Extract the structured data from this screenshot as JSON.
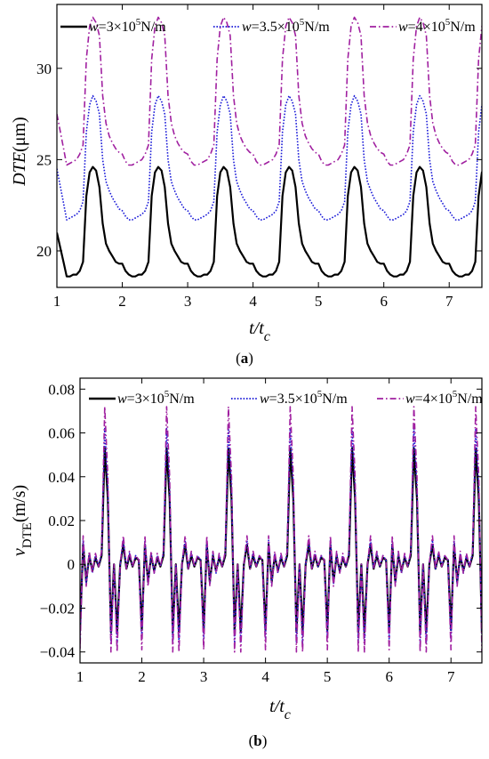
{
  "chart_data": [
    {
      "type": "line",
      "panel_label": "(a)",
      "xlabel": {
        "main": "t/t",
        "sub": "c"
      },
      "ylabel": {
        "main": "DTE",
        "unit": "(μm)"
      },
      "xlim": [
        1,
        7.5
      ],
      "ylim": [
        18,
        33.5
      ],
      "xticks": [
        1,
        2,
        3,
        4,
        5,
        6,
        7
      ],
      "yticks": [
        20,
        25,
        30
      ],
      "grid": false,
      "legend_position": "top",
      "period": 1,
      "series": [
        {
          "name": "w=3×10⁵N/m",
          "legend": {
            "pre": "w",
            "mid": "=3×10",
            "sup": "5",
            "post": "N/m"
          },
          "color": "#000000",
          "style": "solid",
          "values_one_period": [
            19.3,
            18.9,
            18.7,
            18.6,
            18.6,
            18.7,
            18.7,
            18.9,
            19.4,
            23.0,
            24.3,
            24.6,
            24.4,
            23.5,
            21.5,
            20.4,
            20.0,
            19.7,
            19.4,
            19.3
          ],
          "start_value": 21.0
        },
        {
          "name": "w=3.5×10⁵N/m",
          "legend": {
            "pre": "w",
            "mid": "=3.5×10",
            "sup": "5",
            "post": "N/m"
          },
          "color": "#1a1ad8",
          "style": "dotted",
          "values_one_period": [
            22.2,
            21.9,
            21.7,
            21.7,
            21.8,
            21.9,
            22.0,
            22.2,
            22.7,
            26.5,
            28.0,
            28.5,
            28.2,
            27.5,
            25.0,
            23.8,
            23.3,
            22.9,
            22.6,
            22.3
          ],
          "start_value": 24.5
        },
        {
          "name": "w=4×10⁵N/m",
          "legend": {
            "pre": "w",
            "mid": "=4×10",
            "sup": "5",
            "post": "N/m"
          },
          "color": "#a020a0",
          "style": "dashdot",
          "values_one_period": [
            25.3,
            24.9,
            24.7,
            24.7,
            24.8,
            24.9,
            25.0,
            25.3,
            25.8,
            30.5,
            32.3,
            32.8,
            32.5,
            31.8,
            28.5,
            27.0,
            26.3,
            25.9,
            25.6,
            25.4
          ],
          "start_value": 27.5
        }
      ]
    },
    {
      "type": "line",
      "panel_label": "(b)",
      "xlabel": {
        "main": "t/t",
        "sub": "c"
      },
      "ylabel": {
        "main": "v",
        "sub": "DTE",
        "unit": "(m/s)"
      },
      "xlim": [
        1,
        7.5
      ],
      "ylim": [
        -0.045,
        0.085
      ],
      "xticks": [
        1,
        2,
        3,
        4,
        5,
        6,
        7
      ],
      "yticks": [
        -0.04,
        -0.02,
        0,
        0.02,
        0.04,
        0.06,
        0.08
      ],
      "ytick_labels": [
        "−0.04",
        "−0.02",
        "0",
        "0.02",
        "0.04",
        "0.06",
        "0.08"
      ],
      "grid": false,
      "legend_position": "top",
      "period": 1,
      "series": [
        {
          "name": "w=3×10⁵N/m",
          "legend": {
            "pre": "w",
            "mid": "=3×10",
            "sup": "5",
            "post": "N/m"
          },
          "color": "#000000",
          "style": "solid",
          "amplitude_scale": 0.75,
          "values_one_period": [
            -0.03,
            0.009,
            -0.008,
            0.004,
            -0.003,
            0.003,
            -0.001,
            0.004,
            0.053,
            0.03,
            -0.031,
            0.0,
            -0.031,
            0.0,
            0.009,
            -0.002,
            0.004,
            -0.001,
            0.003,
            0.002,
            -0.03
          ]
        },
        {
          "name": "w=3.5×10⁵N/m",
          "legend": {
            "pre": "w",
            "mid": "=3.5×10",
            "sup": "5",
            "post": "N/m"
          },
          "color": "#1a1ad8",
          "style": "dotted",
          "amplitude_scale": 0.87,
          "values_one_period": [
            -0.034,
            0.011,
            -0.009,
            0.005,
            -0.004,
            0.004,
            -0.001,
            0.005,
            0.062,
            0.035,
            -0.036,
            0.0,
            -0.036,
            0.0,
            0.011,
            -0.002,
            0.005,
            -0.001,
            0.004,
            0.002,
            -0.034
          ]
        },
        {
          "name": "w=4×10⁵N/m",
          "legend": {
            "pre": "w",
            "mid": "=4×10",
            "sup": "5",
            "post": "N/m"
          },
          "color": "#a020a0",
          "style": "dashdot",
          "amplitude_scale": 1.0,
          "values_one_period": [
            -0.039,
            0.013,
            -0.01,
            0.006,
            -0.004,
            0.005,
            -0.001,
            0.006,
            0.072,
            0.04,
            -0.04,
            0.0,
            -0.04,
            0.0,
            0.013,
            -0.002,
            0.006,
            -0.001,
            0.004,
            0.002,
            -0.039
          ]
        }
      ]
    }
  ]
}
